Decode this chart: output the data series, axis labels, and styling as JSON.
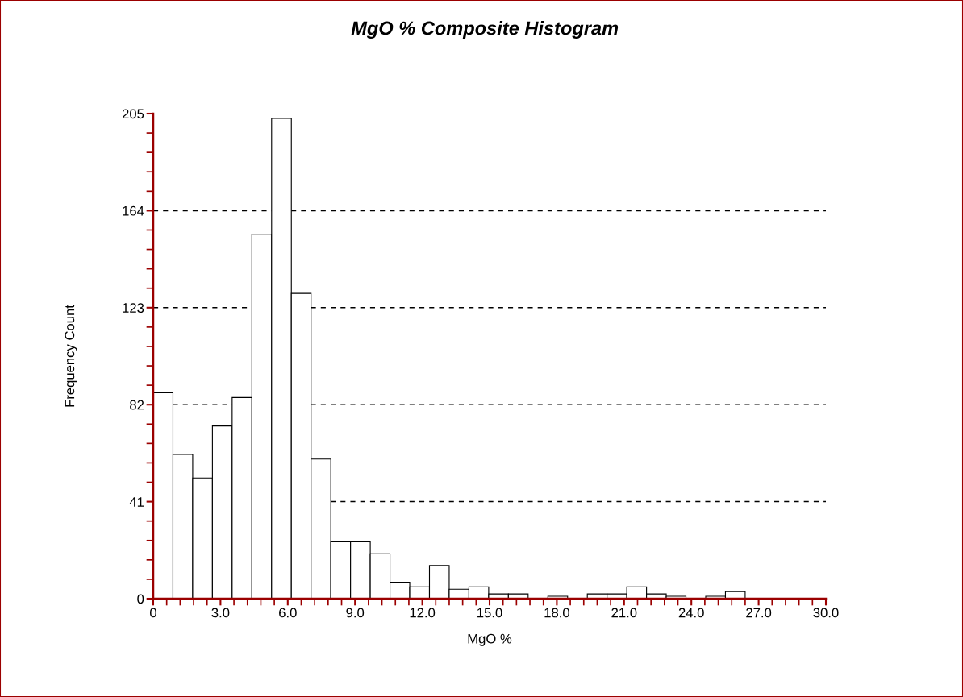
{
  "chart_data": {
    "type": "histogram",
    "title": "MgO % Composite Histogram",
    "xlabel": "MgO %",
    "ylabel": "Frequency Count",
    "bins": [
      0,
      0.88,
      1.76,
      2.64,
      3.52,
      4.4,
      5.28,
      6.16,
      7.04,
      7.92,
      8.8,
      9.68,
      10.56,
      11.44,
      12.32,
      13.2,
      14.08,
      14.96,
      15.84,
      16.72,
      17.6,
      18.48,
      19.36,
      20.24,
      21.12,
      22.0,
      22.88,
      23.76,
      24.64,
      25.52,
      26.4
    ],
    "values": [
      87,
      61,
      51,
      73,
      85,
      154,
      203,
      129,
      59,
      24,
      24,
      19,
      7,
      5,
      14,
      4,
      5,
      2,
      2,
      0,
      1,
      0,
      2,
      2,
      5,
      2,
      1,
      0,
      1,
      3
    ],
    "color": "#ffffff",
    "xlim": [
      0,
      30
    ],
    "xticks": [
      {
        "value": 0,
        "label": "0"
      },
      {
        "value": 0.6,
        "label": null
      },
      {
        "value": 1.2,
        "label": null
      },
      {
        "value": 1.8,
        "label": null
      },
      {
        "value": 2.4,
        "label": null
      },
      {
        "value": 3,
        "label": "3.0"
      },
      {
        "value": 3.6,
        "label": null
      },
      {
        "value": 4.2,
        "label": null
      },
      {
        "value": 4.8,
        "label": null
      },
      {
        "value": 5.4,
        "label": null
      },
      {
        "value": 6,
        "label": "6.0"
      },
      {
        "value": 6.6,
        "label": null
      },
      {
        "value": 7.2,
        "label": null
      },
      {
        "value": 7.8,
        "label": null
      },
      {
        "value": 8.4,
        "label": null
      },
      {
        "value": 9,
        "label": "9.0"
      },
      {
        "value": 9.6,
        "label": null
      },
      {
        "value": 10.2,
        "label": null
      },
      {
        "value": 10.8,
        "label": null
      },
      {
        "value": 11.4,
        "label": null
      },
      {
        "value": 12,
        "label": "12.0"
      },
      {
        "value": 12.6,
        "label": null
      },
      {
        "value": 13.2,
        "label": null
      },
      {
        "value": 13.8,
        "label": null
      },
      {
        "value": 14.4,
        "label": null
      },
      {
        "value": 15,
        "label": "15.0"
      },
      {
        "value": 15.6,
        "label": null
      },
      {
        "value": 16.2,
        "label": null
      },
      {
        "value": 16.8,
        "label": null
      },
      {
        "value": 17.4,
        "label": null
      },
      {
        "value": 18,
        "label": "18.0"
      },
      {
        "value": 18.6,
        "label": null
      },
      {
        "value": 19.2,
        "label": null
      },
      {
        "value": 19.8,
        "label": null
      },
      {
        "value": 20.4,
        "label": null
      },
      {
        "value": 21,
        "label": "21.0"
      },
      {
        "value": 21.6,
        "label": null
      },
      {
        "value": 22.2,
        "label": null
      },
      {
        "value": 22.8,
        "label": null
      },
      {
        "value": 23.4,
        "label": null
      },
      {
        "value": 24,
        "label": "24.0"
      },
      {
        "value": 24.6,
        "label": null
      },
      {
        "value": 25.2,
        "label": null
      },
      {
        "value": 25.8,
        "label": null
      },
      {
        "value": 26.4,
        "label": null
      },
      {
        "value": 27,
        "label": "27.0"
      },
      {
        "value": 27.6,
        "label": null
      },
      {
        "value": 28.2,
        "label": null
      },
      {
        "value": 28.8,
        "label": null
      },
      {
        "value": 29.4,
        "label": null
      },
      {
        "value": 30,
        "label": "30.0"
      }
    ],
    "ylim": [
      0,
      205
    ],
    "yticks": [
      0,
      {
        "value": 8.2,
        "label": null
      },
      {
        "value": 16.4,
        "label": null
      },
      {
        "value": 24.6,
        "label": null
      },
      {
        "value": 32.8,
        "label": null
      },
      41,
      {
        "value": 49.2,
        "label": null
      },
      {
        "value": 57.4,
        "label": null
      },
      {
        "value": 65.6,
        "label": null
      },
      {
        "value": 73.8,
        "label": null
      },
      82,
      {
        "value": 90.2,
        "label": null
      },
      {
        "value": 98.4,
        "label": null
      },
      {
        "value": 106.6,
        "label": null
      },
      {
        "value": 114.8,
        "label": null
      },
      123,
      {
        "value": 131.2,
        "label": null
      },
      {
        "value": 139.4,
        "label": null
      },
      {
        "value": 147.6,
        "label": null
      },
      {
        "value": 155.8,
        "label": null
      },
      164,
      {
        "value": 172.2,
        "label": null
      },
      {
        "value": 180.4,
        "label": null
      },
      {
        "value": 188.6,
        "label": null
      },
      {
        "value": 196.8,
        "label": null
      },
      205
    ],
    "grid": "y"
  }
}
